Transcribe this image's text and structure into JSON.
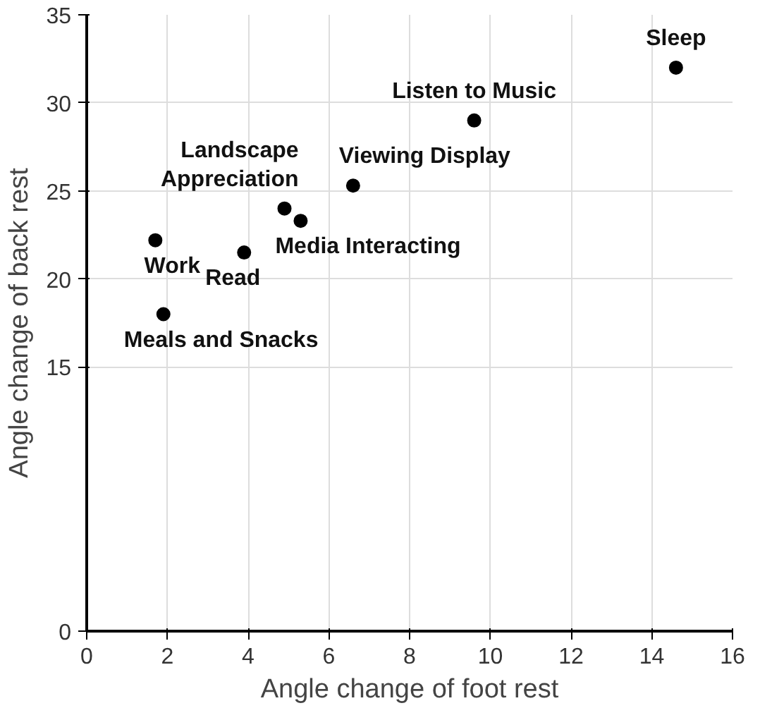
{
  "chart_data": {
    "type": "scatter",
    "xlabel": "Angle change of foot rest",
    "ylabel": "Angle change of back rest",
    "x": [
      14.6,
      9.6,
      6.6,
      4.9,
      5.3,
      1.7,
      3.9,
      1.9
    ],
    "values": [
      32.0,
      29.0,
      25.3,
      24.0,
      23.3,
      22.2,
      21.5,
      18.0
    ],
    "color": "#000000",
    "marker": "circle",
    "grid": true,
    "xlim": [
      0,
      16
    ],
    "ylim": [
      0,
      35
    ],
    "xticks": [
      0,
      2,
      4,
      6,
      8,
      10,
      12,
      14,
      16
    ],
    "yticks": [
      0,
      15,
      20,
      25,
      30,
      35
    ],
    "annotations": [
      {
        "text": "Sleep",
        "x": 14.6,
        "y": 32.0
      },
      {
        "text": "Listen to Music",
        "x": 9.6,
        "y": 29.0
      },
      {
        "text": "Viewing Display",
        "x": 6.6,
        "y": 25.3
      },
      {
        "text": "Landscape\nAppreciation",
        "x": 4.9,
        "y": 24.0
      },
      {
        "text": "Media Interacting",
        "x": 5.3,
        "y": 23.3
      },
      {
        "text": "Work",
        "x": 1.7,
        "y": 22.2
      },
      {
        "text": "Read",
        "x": 3.9,
        "y": 21.5
      },
      {
        "text": "Meals and Snacks",
        "x": 1.9,
        "y": 18.0
      }
    ]
  }
}
